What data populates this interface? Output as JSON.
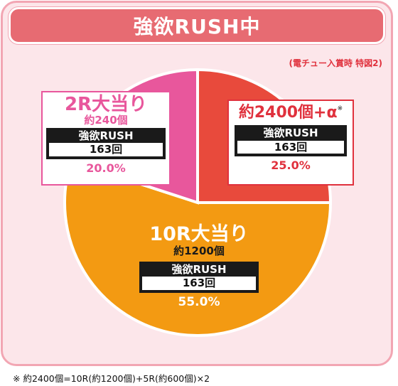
{
  "header": {
    "title": "強欲RUSH中"
  },
  "subtitle": "(電チュー入賞時 特図2)",
  "chart_data": {
    "type": "pie",
    "title": "強欲RUSH中",
    "subtitle": "(電チュー入賞時 特図2)",
    "slices": [
      {
        "label": "約2400個+α",
        "note_mark": "※",
        "value": 25.0,
        "pct_label": "25.0%",
        "rush_label": "強欲RUSH",
        "rush_value": "163回",
        "color": "#e84a3c"
      },
      {
        "label": "10R大当り",
        "sublabel": "約1200個",
        "value": 55.0,
        "pct_label": "55.0%",
        "rush_label": "強欲RUSH",
        "rush_value": "163回",
        "color": "#f39a12"
      },
      {
        "label": "2R大当り",
        "sublabel": "約240個",
        "value": 20.0,
        "pct_label": "20.0%",
        "rush_label": "強欲RUSH",
        "rush_value": "163回",
        "color": "#e8579c"
      }
    ]
  },
  "footnote": "※ 約2400個=10R(約1200個)+5R(約600個)×2"
}
